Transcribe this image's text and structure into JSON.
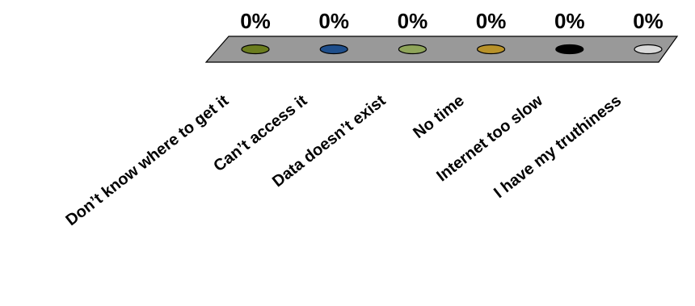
{
  "chart_data": {
    "type": "bar",
    "categories": [
      "Don’t know where to get it",
      "Can’t access it",
      "Data doesn’t exist",
      "No time",
      "Internet too slow",
      "I have my truthiness"
    ],
    "values": [
      0,
      0,
      0,
      0,
      0,
      0
    ],
    "data_labels": [
      "0%",
      "0%",
      "0%",
      "0%",
      "0%",
      "0%"
    ],
    "colors": [
      "#6b7d1f",
      "#1f4f8c",
      "#8fa55a",
      "#b8922a",
      "#000000",
      "#d9d9d9"
    ],
    "floor_color": "#999999",
    "ylim": [
      0,
      100
    ],
    "title": "",
    "xlabel": "",
    "ylabel": "",
    "grid": false,
    "legend": "none"
  }
}
